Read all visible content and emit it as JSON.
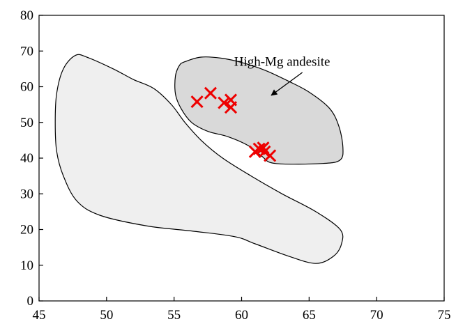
{
  "chart_data": {
    "type": "scatter",
    "title": "",
    "xlabel": "",
    "ylabel": "",
    "xlim": [
      45,
      75
    ],
    "ylim": [
      0,
      80
    ],
    "xticks": [
      45,
      50,
      55,
      60,
      65,
      70,
      75
    ],
    "yticks": [
      0,
      10,
      20,
      30,
      40,
      50,
      60,
      70,
      80
    ],
    "xtick_labels": [
      "45",
      "50",
      "55",
      "60",
      "65",
      "70",
      "75"
    ],
    "ytick_labels": [
      "0",
      "10",
      "20",
      "30",
      "40",
      "50",
      "60",
      "70",
      "80"
    ],
    "grid": false,
    "legend": "none",
    "regions": [
      {
        "fill": "#efefef",
        "stroke": "#000000",
        "polygon": [
          [
            47.7,
            68.8
          ],
          [
            48.6,
            68.2
          ],
          [
            50.5,
            65.0
          ],
          [
            52.0,
            62.0
          ],
          [
            53.5,
            59.5
          ],
          [
            54.8,
            55.0
          ],
          [
            55.8,
            50.0
          ],
          [
            57.0,
            45.0
          ],
          [
            58.6,
            40.0
          ],
          [
            60.7,
            35.0
          ],
          [
            63.0,
            30.0
          ],
          [
            65.5,
            25.0
          ],
          [
            67.3,
            20.0
          ],
          [
            67.4,
            16.0
          ],
          [
            66.8,
            12.5
          ],
          [
            65.5,
            10.5
          ],
          [
            63.5,
            12.5
          ],
          [
            61.0,
            16.0
          ],
          [
            59.5,
            18.0
          ],
          [
            56.5,
            19.5
          ],
          [
            53.0,
            21.0
          ],
          [
            49.5,
            24.0
          ],
          [
            47.8,
            28.0
          ],
          [
            46.8,
            35.0
          ],
          [
            46.3,
            42.0
          ],
          [
            46.2,
            50.0
          ],
          [
            46.3,
            58.0
          ],
          [
            46.8,
            65.0
          ]
        ]
      },
      {
        "fill": "#d9d9d9",
        "stroke": "#000000",
        "polygon": [
          [
            55.8,
            67.0
          ],
          [
            57.0,
            68.3
          ],
          [
            58.5,
            68.0
          ],
          [
            60.0,
            66.8
          ],
          [
            61.8,
            64.5
          ],
          [
            63.5,
            61.5
          ],
          [
            65.0,
            58.5
          ],
          [
            66.5,
            54.0
          ],
          [
            67.2,
            49.0
          ],
          [
            67.5,
            43.0
          ],
          [
            67.3,
            39.5
          ],
          [
            66.0,
            38.5
          ],
          [
            62.5,
            38.5
          ],
          [
            61.5,
            40.5
          ],
          [
            60.5,
            43.5
          ],
          [
            59.0,
            46.0
          ],
          [
            57.5,
            47.5
          ],
          [
            56.3,
            50.0
          ],
          [
            55.5,
            54.0
          ],
          [
            55.1,
            58.0
          ],
          [
            55.1,
            63.0
          ],
          [
            55.4,
            66.0
          ]
        ]
      }
    ],
    "points": [
      {
        "x": 56.7,
        "y": 55.8
      },
      {
        "x": 57.7,
        "y": 58.2
      },
      {
        "x": 58.7,
        "y": 55.5
      },
      {
        "x": 59.2,
        "y": 56.3
      },
      {
        "x": 59.2,
        "y": 54.2
      },
      {
        "x": 61.0,
        "y": 41.8
      },
      {
        "x": 61.3,
        "y": 42.6
      },
      {
        "x": 61.6,
        "y": 42.9
      },
      {
        "x": 61.7,
        "y": 41.8
      },
      {
        "x": 62.1,
        "y": 40.7
      }
    ],
    "marker": {
      "shape": "x",
      "color": "#ee0000"
    },
    "annotations": [
      {
        "text": "High-Mg andesite",
        "x": 63.0,
        "y": 67.0,
        "arrow_from": [
          64.5,
          64.0
        ],
        "arrow_to": [
          62.2,
          57.6
        ]
      }
    ]
  }
}
